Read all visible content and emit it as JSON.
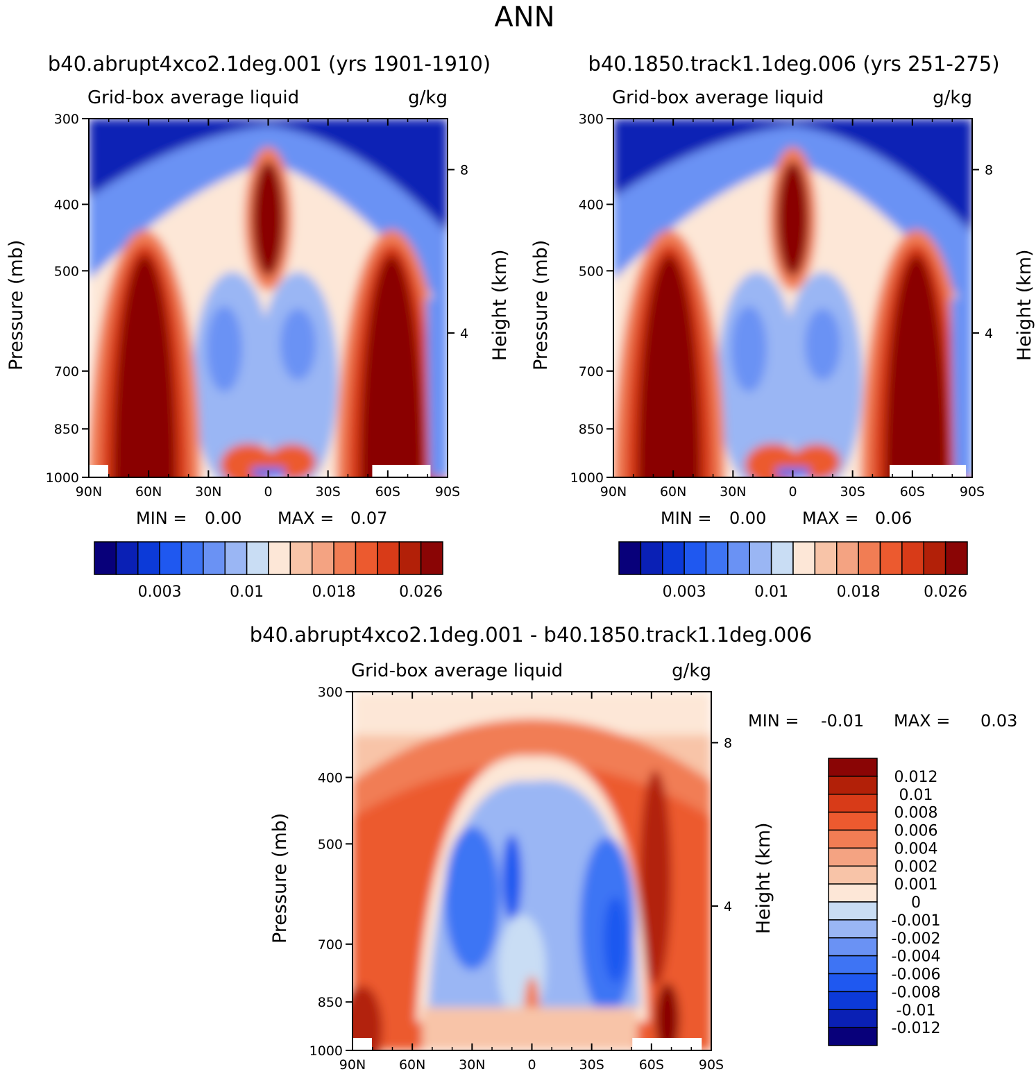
{
  "figure": {
    "title": "ANN"
  },
  "chart_data": [
    {
      "type": "heatmap",
      "title": "b40.abrupt4xco2.1deg.001 (yrs 1901-1910)",
      "subtitle_left": "Grid-box average liquid",
      "subtitle_right": "g/kg",
      "xlabel": "",
      "ylabel": "Pressure (mb)",
      "ylabel_right": "Height (km)",
      "x_ticks": [
        "90N",
        "60N",
        "30N",
        "0",
        "30S",
        "60S",
        "90S"
      ],
      "x_range": [
        90,
        -90
      ],
      "y_ticks": [
        "300",
        "400",
        "500",
        "700",
        "850",
        "1000"
      ],
      "y_range": [
        300,
        1000
      ],
      "height_ticks": [
        "8",
        "4"
      ],
      "stats": {
        "min_label": "MIN =",
        "min": "0.00",
        "max_label": "MAX =",
        "max": "0.07"
      },
      "colorbar": {
        "orientation": "horizontal",
        "colors": [
          "#08007a",
          "#0a20b5",
          "#0c3ad8",
          "#1f58f0",
          "#3e74f4",
          "#6a92f4",
          "#9ab6f4",
          "#c9ddf4",
          "#fde7d7",
          "#f8c4a8",
          "#f4a382",
          "#f17d54",
          "#ec5a2f",
          "#d83b18",
          "#b22008",
          "#8a0505"
        ],
        "tick_labels": [
          "0.003",
          "0.01",
          "0.018",
          "0.026"
        ]
      }
    },
    {
      "type": "heatmap",
      "title": "b40.1850.track1.1deg.006 (yrs 251-275)",
      "subtitle_left": "Grid-box average liquid",
      "subtitle_right": "g/kg",
      "xlabel": "",
      "ylabel": "Pressure (mb)",
      "ylabel_right": "Height (km)",
      "x_ticks": [
        "90N",
        "60N",
        "30N",
        "0",
        "30S",
        "60S",
        "90S"
      ],
      "x_range": [
        90,
        -90
      ],
      "y_ticks": [
        "300",
        "400",
        "500",
        "700",
        "850",
        "1000"
      ],
      "y_range": [
        300,
        1000
      ],
      "height_ticks": [
        "8",
        "4"
      ],
      "stats": {
        "min_label": "MIN =",
        "min": "0.00",
        "max_label": "MAX =",
        "max": "0.06"
      },
      "colorbar": {
        "orientation": "horizontal",
        "colors": [
          "#08007a",
          "#0a20b5",
          "#0c3ad8",
          "#1f58f0",
          "#3e74f4",
          "#6a92f4",
          "#9ab6f4",
          "#c9ddf4",
          "#fde7d7",
          "#f8c4a8",
          "#f4a382",
          "#f17d54",
          "#ec5a2f",
          "#d83b18",
          "#b22008",
          "#8a0505"
        ],
        "tick_labels": [
          "0.003",
          "0.01",
          "0.018",
          "0.026"
        ]
      }
    },
    {
      "type": "heatmap",
      "title": "b40.abrupt4xco2.1deg.001 - b40.1850.track1.1deg.006",
      "subtitle_left": "Grid-box average liquid",
      "subtitle_right": "g/kg",
      "xlabel": "",
      "ylabel": "Pressure (mb)",
      "ylabel_right": "Height (km)",
      "x_ticks": [
        "90N",
        "60N",
        "30N",
        "0",
        "30S",
        "60S",
        "90S"
      ],
      "x_range": [
        90,
        -90
      ],
      "y_ticks": [
        "300",
        "400",
        "500",
        "700",
        "850",
        "1000"
      ],
      "y_range": [
        300,
        1000
      ],
      "height_ticks": [
        "8",
        "4"
      ],
      "stats": {
        "min_label": "MIN =",
        "min": "-0.01",
        "max_label": "MAX =",
        "max": "0.03"
      },
      "colorbar": {
        "orientation": "vertical",
        "colors": [
          "#8a0505",
          "#b22008",
          "#d83b18",
          "#ec5a2f",
          "#f17d54",
          "#f4a382",
          "#f8c4a8",
          "#fde7d7",
          "#c9ddf4",
          "#9ab6f4",
          "#6a92f4",
          "#3e74f4",
          "#1f58f0",
          "#0c3ad8",
          "#0a20b5",
          "#08007a"
        ],
        "tick_labels": [
          "0.012",
          "0.01",
          "0.008",
          "0.006",
          "0.004",
          "0.002",
          "0.001",
          "0",
          "-0.001",
          "-0.002",
          "-0.004",
          "-0.006",
          "-0.008",
          "-0.01",
          "-0.012"
        ]
      }
    }
  ]
}
